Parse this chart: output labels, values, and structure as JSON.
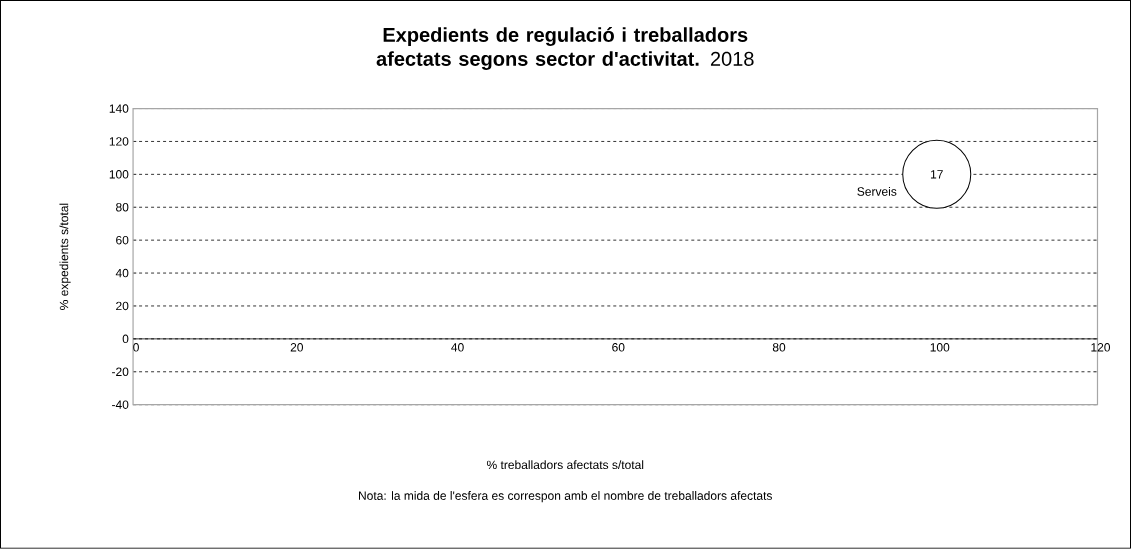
{
  "chart_data": {
    "type": "bubble",
    "title": "**Expedients de regulació i treballadors afectats segons sector d'activitat.** 2018",
    "xlabel": "% treballadors afectats s/total",
    "ylabel": "% expedients  s/total",
    "series": [
      {
        "name": "Serveis",
        "color": "#ffffff",
        "x": [
          100
        ],
        "values": [
          100
        ],
        "sizes": [
          1
        ]
      }
    ],
    "annotations": [
      {
        "text": "17",
        "x": 100,
        "y": 100
      },
      "Nota: la mida de l'esfera es correspon amb el nombre de treballadors afectats"
    ],
    "xlim": [
      0,
      120
    ],
    "xticks": [
      0,
      20,
      40,
      60,
      80,
      100,
      120
    ],
    "ylim": [
      -40,
      140
    ],
    "yticks": [
      -40,
      -20,
      0,
      20,
      40,
      60,
      80,
      100,
      120,
      140
    ],
    "grid": "y"
  }
}
